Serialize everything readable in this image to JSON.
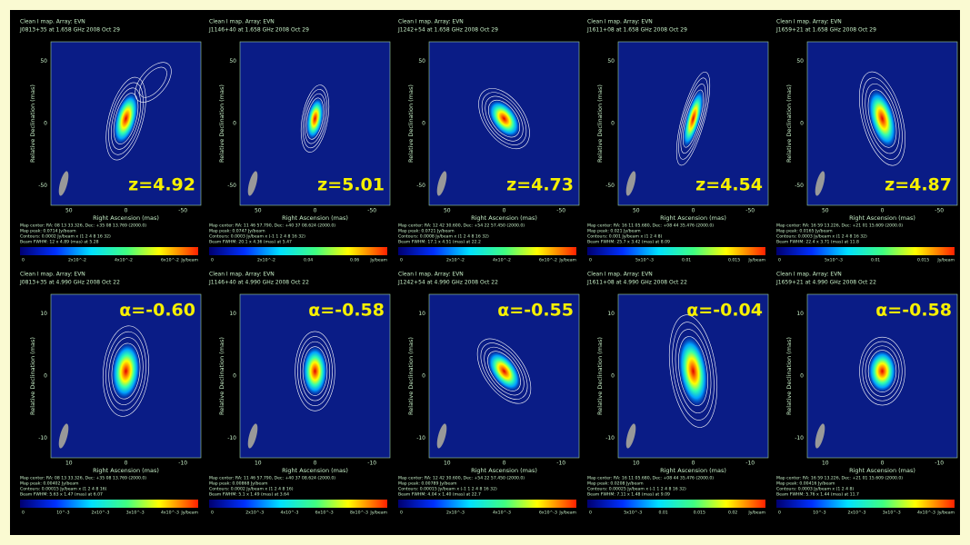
{
  "panels": [
    {
      "header": "Clean I map. Array: EVN",
      "source": "J0813+35 at 1.658 GHz 2008 Oct 29",
      "label": "z=4.92",
      "x_axis": "Right Ascension (mas)",
      "y_axis": "Relative Declination (mas)",
      "xticks": [
        "50",
        "0",
        "-50"
      ],
      "yticks": [
        "50",
        "0",
        "-50"
      ],
      "footer": [
        "Map center: RA: 08 13 33.326, Dec: +35 08 13.769 (2000.0)",
        "Map peak: 0.0714 Jy/beam",
        "Contours: 0.0002 Jy/beam x (1 2 4 8 16 32)",
        "Beam FWHM: 12 x 4.89 (mas) at 5.28"
      ],
      "colorbar_ticks": [
        "0",
        "2x10^-2",
        "4x10^-2",
        "6x10^-2"
      ],
      "colorbar_unit": "Jy/beam"
    },
    {
      "header": "Clean I map. Array: EVN",
      "source": "J1146+40 at 1.658 GHz 2008 Oct 29",
      "label": "z=5.01",
      "x_axis": "Right Ascension (mas)",
      "y_axis": "Relative Declination (mas)",
      "xticks": [
        "50",
        "0",
        "-50"
      ],
      "yticks": [
        "50",
        "0",
        "-50"
      ],
      "footer": [
        "Map center: RA: 11 46 57.790, Dec: +40 37 08.624 (2000.0)",
        "Map peak: 0.0747 Jy/beam",
        "Contours: 0.0003 Jy/beam x (-1 1 2 4 8 16 32)",
        "Beam FWHM: 20.1 x 4.36 (mas) at 5.47"
      ],
      "colorbar_ticks": [
        "0",
        "2x10^-2",
        "0.04",
        "0.06"
      ],
      "colorbar_unit": "Jy/beam"
    },
    {
      "header": "Clean I map. Array: EVN",
      "source": "J1242+54 at 1.658 GHz 2008 Oct 29",
      "label": "z=4.73",
      "x_axis": "Right Ascension (mas)",
      "y_axis": "Relative Declination (mas)",
      "xticks": [
        "50",
        "0",
        "-50"
      ],
      "yticks": [
        "50",
        "0",
        "-50"
      ],
      "footer": [
        "Map center: RA: 12 42 30.600, Dec: +54 22 57.450 (2000.0)",
        "Map peak: 0.0721 Jy/beam",
        "Contours: 0.0008 Jy/beam x (1 2 4 8 16 32)",
        "Beam FWHM: 17.1 x 4.51 (mas) at 22.2"
      ],
      "colorbar_ticks": [
        "0",
        "2x10^-2",
        "4x10^-2",
        "6x10^-2"
      ],
      "colorbar_unit": "Jy/beam"
    },
    {
      "header": "Clean I map. Array: EVN",
      "source": "J1611+08 at 1.658 GHz 2008 Oct 29",
      "label": "z=4.54",
      "x_axis": "Right Ascension (mas)",
      "y_axis": "Relative Declination (mas)",
      "xticks": [
        "50",
        "0",
        "-50"
      ],
      "yticks": [
        "50",
        "0",
        "-50"
      ],
      "footer": [
        "Map center: RA: 16 11 05.680, Dec: +08 44 35.476 (2000.0)",
        "Map peak: 0.021 Jy/beam",
        "Contours: 0.001 Jy/beam x (1 2 4 8)",
        "Beam FWHM: 25.7 x 3.42 (mas) at 8.09"
      ],
      "colorbar_ticks": [
        "0",
        "5x10^-3",
        "0.01",
        "0.015"
      ],
      "colorbar_unit": "Jy/beam"
    },
    {
      "header": "Clean I map. Array: EVN",
      "source": "J1659+21 at 1.658 GHz 2008 Oct 29",
      "label": "z=4.87",
      "x_axis": "Right Ascension (mas)",
      "y_axis": "Relative Declination (mas)",
      "xticks": [
        "50",
        "0",
        "-50"
      ],
      "yticks": [
        "50",
        "0",
        "-50"
      ],
      "footer": [
        "Map center: RA: 16 59 13.226, Dec: +21 01 15.609 (2000.0)",
        "Map peak: 0.0165 Jy/beam",
        "Contours: 0.0003 Jy/beam x (1 2 4 8 16 32)",
        "Beam FWHM: 22.4 x 3.71 (mas) at 11.8"
      ],
      "colorbar_ticks": [
        "0",
        "5x10^-3",
        "0.01",
        "0.015"
      ],
      "colorbar_unit": "Jy/beam"
    },
    {
      "header": "Clean I map. Array: EVN",
      "source": "J0813+35 at 4.990 GHz 2008 Oct 22",
      "label": "α=-0.60",
      "x_axis": "Right Ascension (mas)",
      "y_axis": "Relative Declination (mas)",
      "xticks": [
        "10",
        "0",
        "-10"
      ],
      "yticks": [
        "10",
        "0",
        "-10"
      ],
      "footer": [
        "Map center: RA: 08 13 33.326, Dec: +35 08 13.769 (2000.0)",
        "Map peak: 0.00402 Jy/beam",
        "Contours: 0.00015 Jy/beam x (1 2 4 8 16)",
        "Beam FWHM: 5.63 x 1.47 (mas) at 6.07"
      ],
      "colorbar_ticks": [
        "0",
        "10^-3",
        "2x10^-3",
        "3x10^-3",
        "4x10^-3"
      ],
      "colorbar_unit": "Jy/beam"
    },
    {
      "header": "Clean I map. Array: EVN",
      "source": "J1146+40 at 4.990 GHz 2008 Oct 22",
      "label": "α=-0.58",
      "x_axis": "Right Ascension (mas)",
      "y_axis": "Relative Declination (mas)",
      "xticks": [
        "10",
        "0",
        "-10"
      ],
      "yticks": [
        "10",
        "0",
        "-10"
      ],
      "footer": [
        "Map center: RA: 11 46 57.790, Dec: +40 37 08.624 (2000.0)",
        "Map peak: 0.00868 Jy/beam",
        "Contours: 0.0002 Jy/beam x (1 2 4 8 16)",
        "Beam FWHM: 5.1 x 1.49 (mas) at 3.64"
      ],
      "colorbar_ticks": [
        "0",
        "2x10^-3",
        "4x10^-3",
        "6x10^-3",
        "8x10^-3"
      ],
      "colorbar_unit": "Jy/beam"
    },
    {
      "header": "Clean I map. Array: EVN",
      "source": "J1242+54 at 4.990 GHz 2008 Oct 22",
      "label": "α=-0.55",
      "x_axis": "Right Ascension (mas)",
      "y_axis": "Relative Declination (mas)",
      "xticks": [
        "10",
        "0",
        "-10"
      ],
      "yticks": [
        "10",
        "0",
        "-10"
      ],
      "footer": [
        "Map center: RA: 12 42 30.600, Dec: +54 22 57.450 (2000.0)",
        "Map peak: 0.00789 Jy/beam",
        "Contours: 0.00015 Jy/beam x (-1 1 2 4 8 16 32)",
        "Beam FWHM: 4.04 x 1.40 (mas) at 22.7"
      ],
      "colorbar_ticks": [
        "0",
        "2x10^-3",
        "4x10^-3",
        "6x10^-3"
      ],
      "colorbar_unit": "Jy/beam"
    },
    {
      "header": "Clean I map. Array: EVN",
      "source": "J1611+08 at 4.990 GHz 2008 Oct 22",
      "label": "α=-0.04",
      "x_axis": "Right Ascension (mas)",
      "y_axis": "Relative Declination (mas)",
      "xticks": [
        "10",
        "0",
        "-10"
      ],
      "yticks": [
        "10",
        "0",
        "-10"
      ],
      "footer": [
        "Map center: RA: 16 11 05.680, Dec: +08 44 35.476 (2000.0)",
        "Map peak: 0.0208 Jy/beam",
        "Contours: 0.00025 Jy/beam x (-1 1 2 4 8 16 32)",
        "Beam FWHM: 7.11 x 1.48 (mas) at 9.09"
      ],
      "colorbar_ticks": [
        "0",
        "5x10^-3",
        "0.01",
        "0.015",
        "0.02"
      ],
      "colorbar_unit": "Jy/beam"
    },
    {
      "header": "Clean I map. Array: EVN",
      "source": "J1659+21 at 4.990 GHz 2008 Oct 22",
      "label": "α=-0.58",
      "x_axis": "Right Ascension (mas)",
      "y_axis": "Relative Declination (mas)",
      "xticks": [
        "10",
        "0",
        "-10"
      ],
      "yticks": [
        "10",
        "0",
        "-10"
      ],
      "footer": [
        "Map center: RA: 16 59 13.226, Dec: +21 01 15.609 (2000.0)",
        "Map peak: 0.00416 Jy/beam",
        "Contours: 0.0003 Jy/beam x (1 2 4 8)",
        "Beam FWHM: 5.76 x 1.44 (mas) at 11.7"
      ],
      "colorbar_ticks": [
        "0",
        "10^-3",
        "2x10^-3",
        "3x10^-3",
        "4x10^-3"
      ],
      "colorbar_unit": "Jy/beam"
    }
  ]
}
